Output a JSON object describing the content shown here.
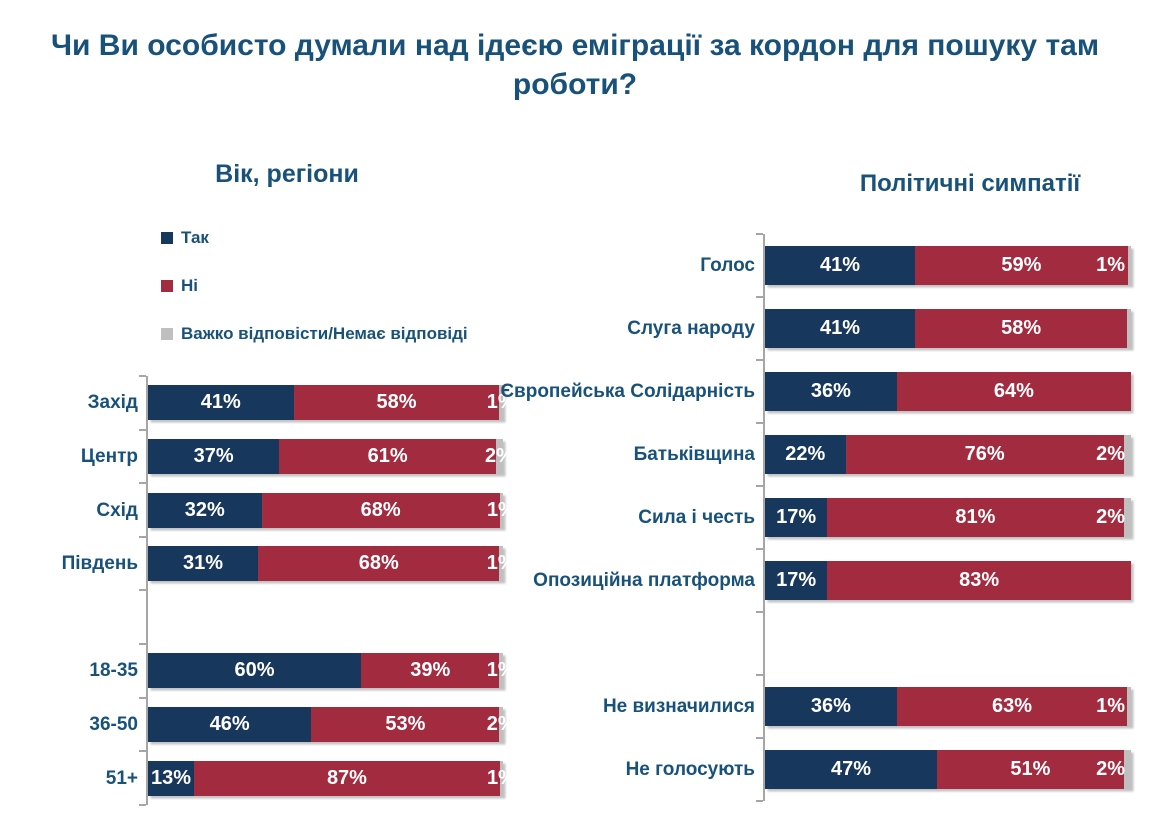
{
  "title": "Чи Ви особисто думали над ідеєю еміграції за кордон для пошуку там роботи?",
  "colors": {
    "yes": "#17375D",
    "no": "#A32B3F",
    "dk": "#BFBFBF",
    "text": "#18527B",
    "axis": "#A6A6A6",
    "background": "#FFFFFF"
  },
  "chart_data": [
    {
      "type": "bar",
      "orientation": "horizontal",
      "stacked_percent": true,
      "title": "Вік, регіони",
      "legend_position": "top-left",
      "legend": [
        {
          "label": "Так",
          "color": "#17375D"
        },
        {
          "label": "Ні",
          "color": "#A32B3F"
        },
        {
          "label": "Важко відповісти/Немає відповіді",
          "color": "#BFBFBF"
        }
      ],
      "series_names": [
        "Так",
        "Ні",
        "Важко відповісти/Немає відповіді"
      ],
      "rows": [
        {
          "label": "Захід",
          "yes": 41,
          "no": 58,
          "dk": 1
        },
        {
          "label": "Центр",
          "yes": 37,
          "no": 61,
          "dk": 2
        },
        {
          "label": "Схід",
          "yes": 32,
          "no": 68,
          "dk": 1
        },
        {
          "label": "Південь",
          "yes": 31,
          "no": 68,
          "dk": 1
        },
        null,
        {
          "label": "18-35",
          "yes": 60,
          "no": 39,
          "dk": 1
        },
        {
          "label": "36-50",
          "yes": 46,
          "no": 53,
          "dk": 2
        },
        {
          "label": "51+",
          "yes": 13,
          "no": 87,
          "dk": 1
        }
      ]
    },
    {
      "type": "bar",
      "orientation": "horizontal",
      "stacked_percent": true,
      "title": "Політичні симпатії",
      "legend": [],
      "series_names": [
        "Так",
        "Ні",
        "Важко відповісти/Немає відповіді"
      ],
      "rows": [
        {
          "label": "Голос",
          "yes": 41,
          "no": 59,
          "dk": 1
        },
        {
          "label": "Слуга народу",
          "yes": 41,
          "no": 58,
          "dk": 1,
          "dk_shown": false
        },
        {
          "label": "Європейська Солідарність",
          "yes": 36,
          "no": 64,
          "dk": null
        },
        {
          "label": "Батьківщина",
          "yes": 22,
          "no": 76,
          "dk": 2
        },
        {
          "label": "Сила і честь",
          "yes": 17,
          "no": 81,
          "dk": 2
        },
        {
          "label": "Опозиційна платформа",
          "yes": 17,
          "no": 83,
          "dk": null
        },
        null,
        {
          "label": "Не визначилися",
          "yes": 36,
          "no": 63,
          "dk": 1
        },
        {
          "label": "Не голосують",
          "yes": 47,
          "no": 51,
          "dk": 2
        }
      ]
    }
  ]
}
